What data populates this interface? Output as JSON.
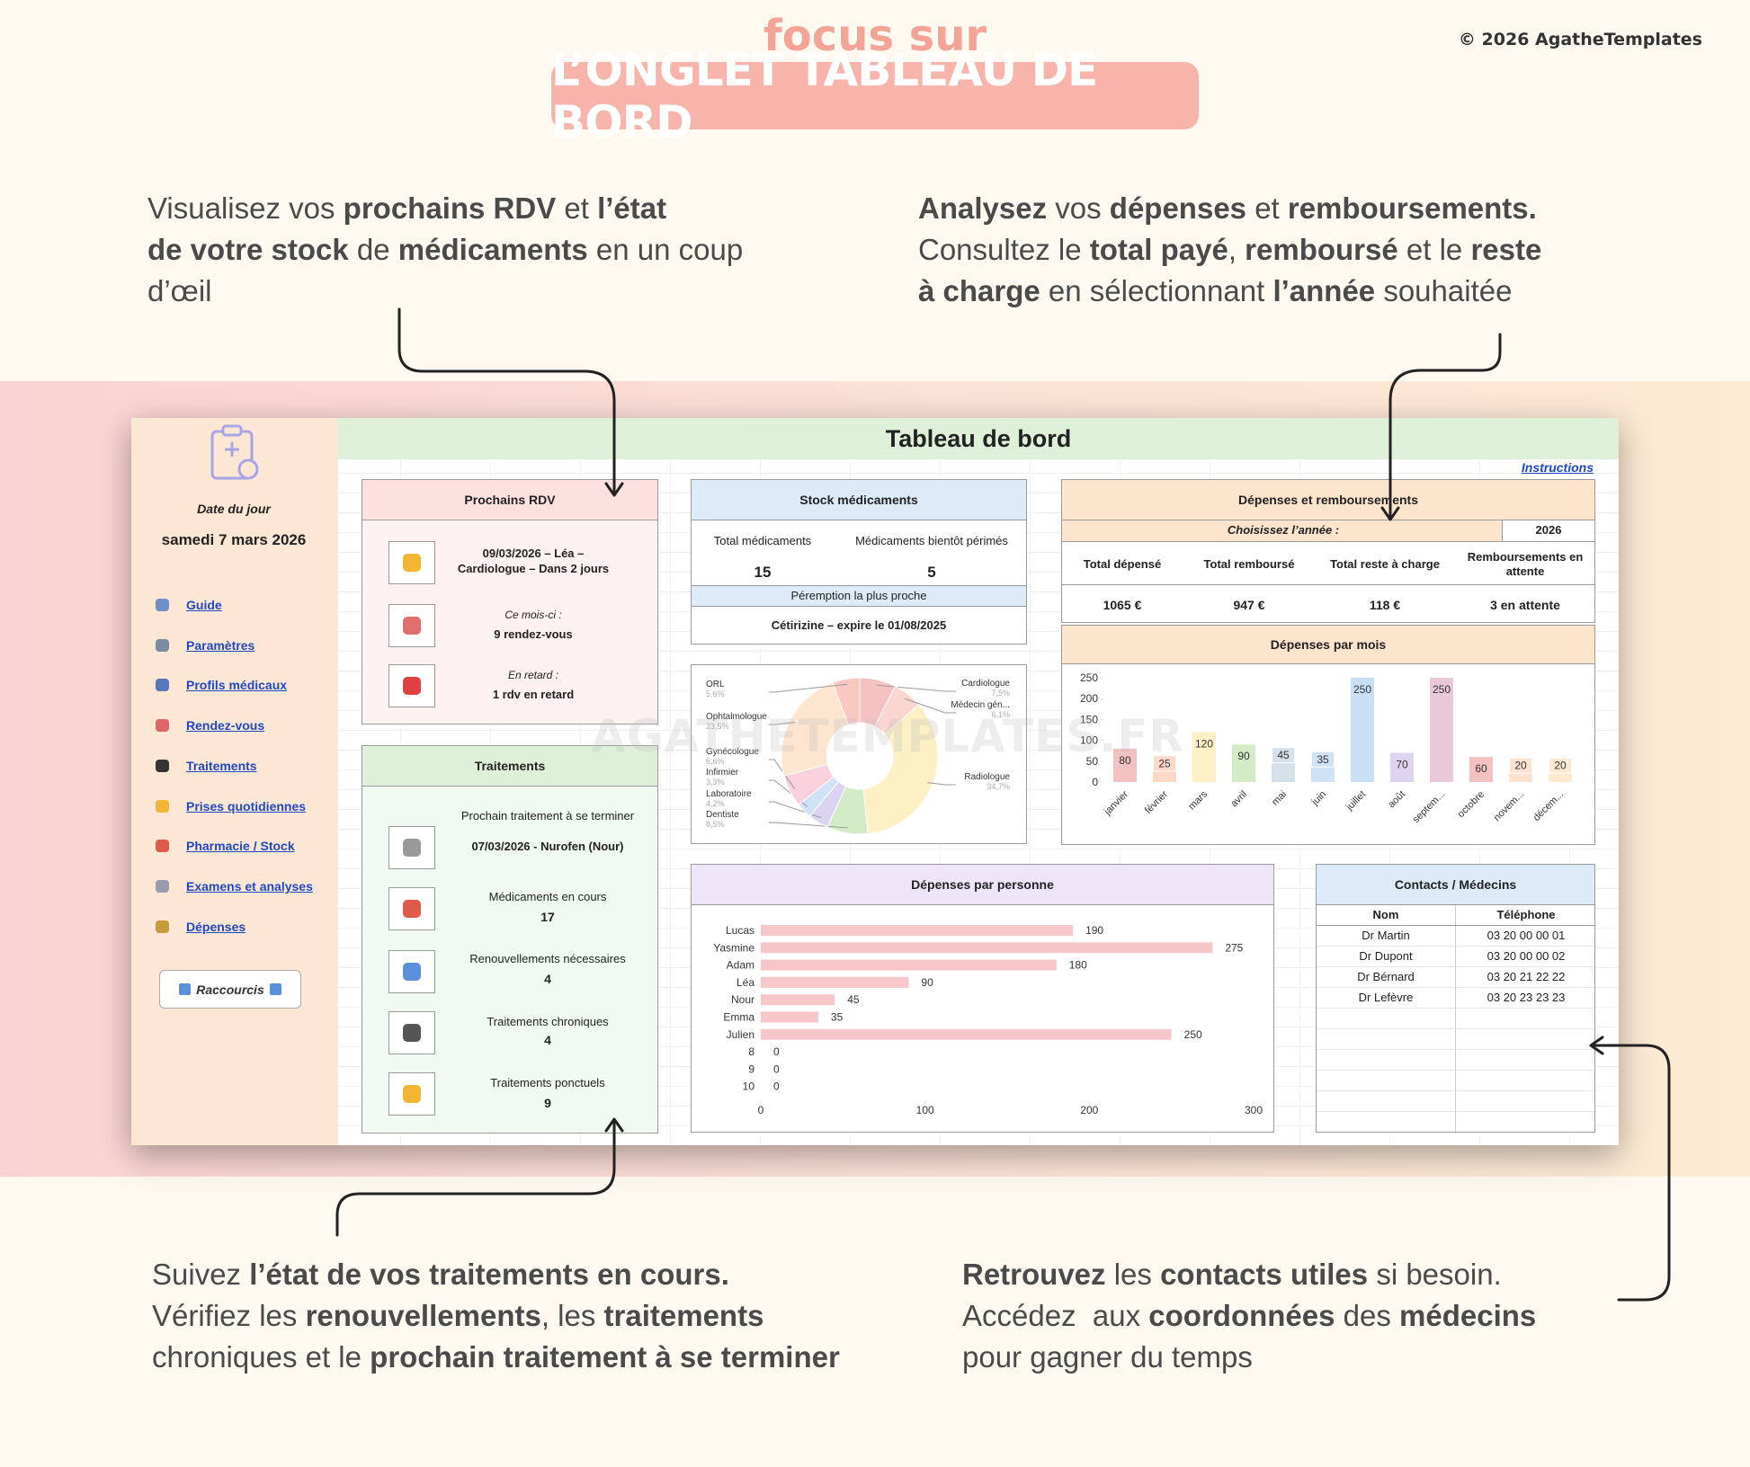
{
  "header": {
    "kicker": "focus sur",
    "title": "L’ONGLET TABLEAU DE BORD",
    "copyright": "© 2026 AgatheTemplates"
  },
  "callouts": [
    {
      "lines": [
        [
          {
            "text": "Visualisez vos ",
            "bold": false
          },
          {
            "text": "prochains RDV",
            "bold": true
          },
          {
            "text": " et ",
            "bold": false
          },
          {
            "text": "l’état",
            "bold": true
          }
        ],
        [
          {
            "text": "de votre stock",
            "bold": true
          },
          {
            "text": " de ",
            "bold": false
          },
          {
            "text": "médicaments",
            "bold": true
          },
          {
            "text": " en un coup",
            "bold": false
          }
        ],
        [
          {
            "text": "d’œil",
            "bold": false
          }
        ]
      ]
    },
    {
      "lines": [
        [
          {
            "text": "Analysez",
            "bold": true
          },
          {
            "text": " vos ",
            "bold": false
          },
          {
            "text": "dépenses",
            "bold": true
          },
          {
            "text": " et ",
            "bold": false
          },
          {
            "text": "remboursements.",
            "bold": true
          }
        ],
        [
          {
            "text": "Consultez le ",
            "bold": false
          },
          {
            "text": "total payé",
            "bold": true
          },
          {
            "text": ", ",
            "bold": false
          },
          {
            "text": "remboursé",
            "bold": true
          },
          {
            "text": " et le ",
            "bold": false
          },
          {
            "text": "reste",
            "bold": true
          }
        ],
        [
          {
            "text": "à charge",
            "bold": true
          },
          {
            "text": " en sélectionnant ",
            "bold": false
          },
          {
            "text": "l’année",
            "bold": true
          },
          {
            "text": " souhaitée",
            "bold": false
          }
        ]
      ]
    },
    {
      "lines": [
        [
          {
            "text": "Suivez ",
            "bold": false
          },
          {
            "text": "l’état de vos traitements en cours.",
            "bold": true
          }
        ],
        [
          {
            "text": "Vérifiez les ",
            "bold": false
          },
          {
            "text": "renouvellements",
            "bold": true
          },
          {
            "text": ", les ",
            "bold": false
          },
          {
            "text": "traitements",
            "bold": true
          }
        ],
        [
          {
            "text": "chroniques et le ",
            "bold": false
          },
          {
            "text": "prochain traitement à se terminer",
            "bold": true
          }
        ]
      ]
    },
    {
      "lines": [
        [
          {
            "text": "Retrouvez",
            "bold": true
          },
          {
            "text": " les ",
            "bold": false
          },
          {
            "text": "contacts utiles",
            "bold": true
          },
          {
            "text": " si besoin.",
            "bold": false
          }
        ],
        [
          {
            "text": "Accédez  aux ",
            "bold": false
          },
          {
            "text": "coordonnées",
            "bold": true
          },
          {
            "text": " des ",
            "bold": false
          },
          {
            "text": "médecins",
            "bold": true
          }
        ],
        [
          {
            "text": "pour gagner du temps",
            "bold": false
          }
        ]
      ]
    }
  ],
  "dashboard": {
    "title": "Tableau de bord",
    "instructions": "Instructions",
    "watermark": "AGATHETEMPLATES.FR",
    "sidebar": {
      "date_label": "Date du jour",
      "date": "samedi 7 mars 2026",
      "nav": [
        "Guide",
        "Paramètres",
        "Profils médicaux",
        "Rendez-vous",
        "Traitements",
        "Prises quotidiennes",
        "Pharmacie / Stock",
        "Examens et analyses",
        "Dépenses"
      ],
      "shortcut": "Raccourcis"
    },
    "appointments": {
      "title": "Prochains RDV",
      "next": "09/03/2026 – Léa – Cardiologue – Dans 2 jours",
      "items": [
        {
          "label": "Ce mois-ci :",
          "value": "9 rendez-vous"
        },
        {
          "label": "En retard :",
          "value": "1 rdv en retard"
        }
      ]
    },
    "treatments": {
      "title": "Traitements",
      "next_label": "Prochain traitement à se terminer",
      "next": "07/03/2026 - Nurofen (Nour)",
      "stats": [
        {
          "label": "Médicaments en cours",
          "value": 17
        },
        {
          "label": "Renouvellements nécessaires",
          "value": 4
        },
        {
          "label": "Traitements chroniques",
          "value": 4
        },
        {
          "label": "Traitements ponctuels",
          "value": 9
        }
      ]
    },
    "stock": {
      "title": "Stock médicaments",
      "stats": [
        {
          "label": "Total médicaments",
          "value": 15
        },
        {
          "label": "Médicaments bientôt périmés",
          "value": 5
        }
      ],
      "expiry_label": "Péremption la plus proche",
      "expiry": "Cétirizine – expire le 01/08/2025"
    },
    "specialties_chart": {
      "type": "pie",
      "categories": [
        "Cardiologue",
        "Médecin gén...",
        "Radiologue",
        "Dentiste",
        "Laboratoire",
        "Infirmier",
        "Gynécologue",
        "Ophtalmologue",
        "ORL"
      ],
      "values": [
        7.5,
        6.1,
        34.7,
        8.5,
        4.2,
        3.3,
        6.6,
        23.5,
        5.6
      ],
      "value_labels": [
        "7,5%",
        "6,1%",
        "34,7%",
        "8,5%",
        "4,2%",
        "3,3%",
        "6,6%",
        "23,5%",
        "5,6%"
      ],
      "colors": [
        "#f6c1c1",
        "#fbd5d0",
        "#fdf0c4",
        "#d4ebc8",
        "#dcd3f2",
        "#cfe2f6",
        "#f9d0dc",
        "#fde5cf",
        "#f7c7c0"
      ]
    },
    "expenses": {
      "title": "Dépenses et remboursements",
      "year_label": "Choisissez l’année :",
      "year": "2026",
      "columns": [
        "Total dépensé",
        "Total remboursé",
        "Total reste à charge",
        "Remboursements en attente"
      ],
      "values": [
        "1065 €",
        "947 €",
        "118 €",
        "3 en attente"
      ]
    },
    "monthly_chart": {
      "type": "bar",
      "title": "Dépenses par mois",
      "categories": [
        "janvier",
        "février",
        "mars",
        "avril",
        "mai",
        "juin",
        "juillet",
        "août",
        "septem...",
        "octobre",
        "novem...",
        "décem..."
      ],
      "values": [
        80,
        25,
        120,
        90,
        45,
        35,
        250,
        70,
        250,
        60,
        20,
        20
      ],
      "colors": [
        "#f4c1c1",
        "#fcd9c6",
        "#fdf0c4",
        "#d4ebc8",
        "#d6e0ea",
        "#cfe2f6",
        "#c9dff5",
        "#ddd5ef",
        "#e9c9d9",
        "#f4c1c1",
        "#fde2d0",
        "#fde8d0"
      ],
      "ylim": [
        0,
        250
      ],
      "yticks": [
        0,
        50,
        100,
        150,
        200,
        250
      ]
    },
    "person_chart": {
      "type": "bar",
      "orientation": "horizontal",
      "title": "Dépenses par personne",
      "categories": [
        "Lucas",
        "Yasmine",
        "Adam",
        "Léa",
        "Nour",
        "Emma",
        "Julien",
        "8",
        "9",
        "10"
      ],
      "values": [
        190,
        275,
        180,
        90,
        45,
        35,
        250,
        0,
        0,
        0
      ],
      "color": "#f6c6c8",
      "xlim": [
        0,
        300
      ],
      "xticks": [
        0,
        100,
        200,
        300
      ]
    },
    "contacts": {
      "title": "Contacts / Médecins",
      "columns": [
        "Nom",
        "Téléphone"
      ],
      "rows": [
        [
          "Dr Martin",
          "03 20 00 00 01"
        ],
        [
          "Dr Dupont",
          "03 20 00 00 02"
        ],
        [
          "Dr Bérnard",
          "03 20 21 22 22"
        ],
        [
          "Dr Lefèvre",
          "03 20 23 23 23"
        ]
      ]
    }
  }
}
